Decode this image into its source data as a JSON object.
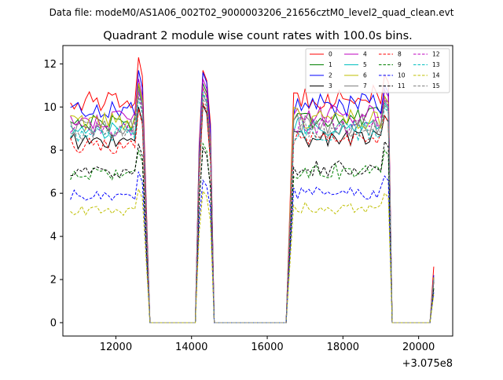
{
  "figure": {
    "suptitle": "Data file: modeM0/AS1A06_002T02_9000003206_21656cztM0_level2_quad_clean.evt",
    "title": "Quadrant 2 module wise count rates with 100.0s bins.",
    "x_offset_label": "+3.075e8"
  },
  "chart_data": {
    "type": "line",
    "title": "Quadrant 2 module wise count rates with 100.0s bins.",
    "xlabel": "",
    "ylabel": "",
    "x_offset": 307500000,
    "xlim": [
      10600,
      20900
    ],
    "ylim": [
      -0.62,
      12.85
    ],
    "xticks": [
      12000,
      14000,
      16000,
      18000,
      20000
    ],
    "xtick_labels": [
      "12000",
      "14000",
      "16000",
      "18000",
      "20000"
    ],
    "yticks": [
      0,
      2,
      4,
      6,
      8,
      10,
      12
    ],
    "ytick_labels": [
      "0",
      "2",
      "4",
      "6",
      "8",
      "10",
      "12"
    ],
    "grid": false,
    "legend_position": "top-right",
    "segments": [
      {
        "x0": 10800,
        "n": 20
      },
      {
        "x0": 14200,
        "n": 4
      },
      {
        "x0": 16700,
        "n": 26
      },
      {
        "x0": 20400,
        "n": 1
      }
    ],
    "zero_segments": [
      [
        12900,
        13000,
        13100,
        13200,
        13300,
        13400,
        13500,
        13600,
        13700,
        13800,
        13900,
        14000,
        14100
      ],
      [
        14600,
        14700,
        14800,
        14900,
        15000,
        15100,
        15200,
        15300,
        15400,
        15500,
        15600,
        15700,
        15800,
        15900,
        16000,
        16100,
        16200,
        16300,
        16400,
        16500
      ],
      [
        19300,
        19400,
        19500,
        19600,
        19700,
        19800,
        19900,
        20000,
        20100,
        20200,
        20300
      ]
    ],
    "series": [
      {
        "name": "0",
        "color": "#ff0000",
        "dash": "solid",
        "mean": 10.25,
        "peak1": 12.3,
        "peak2": 11.7,
        "peak3": 11.5,
        "end": 2.6
      },
      {
        "name": "1",
        "color": "#008000",
        "dash": "solid",
        "mean": 9.3,
        "peak1": 11.0,
        "peak2": 11.1,
        "peak3": 10.5,
        "end": 2.1
      },
      {
        "name": "2",
        "color": "#0000ff",
        "dash": "solid",
        "mean": 9.9,
        "peak1": 11.7,
        "peak2": 11.6,
        "peak3": 11.0,
        "end": 2.2
      },
      {
        "name": "3",
        "color": "#000000",
        "dash": "solid",
        "mean": 8.4,
        "peak1": 10.0,
        "peak2": 10.1,
        "peak3": 9.6,
        "end": 1.9
      },
      {
        "name": "4",
        "color": "#bf00bf",
        "dash": "solid",
        "mean": 9.4,
        "peak1": 11.3,
        "peak2": 11.3,
        "peak3": 10.8,
        "end": 2.1
      },
      {
        "name": "5",
        "color": "#00bfbf",
        "dash": "solid",
        "mean": 8.9,
        "peak1": 10.8,
        "peak2": 10.9,
        "peak3": 10.2,
        "end": 2.0
      },
      {
        "name": "6",
        "color": "#bfbf00",
        "dash": "solid",
        "mean": 9.3,
        "peak1": 11.1,
        "peak2": 10.9,
        "peak3": 10.5,
        "end": 2.1
      },
      {
        "name": "7",
        "color": "#808080",
        "dash": "solid",
        "mean": 9.0,
        "peak1": 10.9,
        "peak2": 10.6,
        "peak3": 10.3,
        "end": 2.0
      },
      {
        "name": "8",
        "color": "#ff0000",
        "dash": "dashed",
        "mean": 8.2,
        "peak1": 9.9,
        "peak2": 10.2,
        "peak3": 9.6,
        "end": 1.9
      },
      {
        "name": "9",
        "color": "#008000",
        "dash": "dashed",
        "mean": 6.9,
        "peak1": 8.0,
        "peak2": 8.3,
        "peak3": 8.0,
        "end": 1.6
      },
      {
        "name": "10",
        "color": "#0000ff",
        "dash": "dashed",
        "mean": 5.9,
        "peak1": 7.0,
        "peak2": 6.6,
        "peak3": 6.8,
        "end": 1.4
      },
      {
        "name": "11",
        "color": "#000000",
        "dash": "dashed",
        "mean": 7.0,
        "peak1": 8.3,
        "peak2": 8.1,
        "peak3": 8.4,
        "end": 1.6
      },
      {
        "name": "12",
        "color": "#bf00bf",
        "dash": "dashed",
        "mean": 9.0,
        "peak1": 10.7,
        "peak2": 10.9,
        "peak3": 10.4,
        "end": 2.0
      },
      {
        "name": "13",
        "color": "#00bfbf",
        "dash": "dashed",
        "mean": 8.7,
        "peak1": 10.4,
        "peak2": 10.7,
        "peak3": 10.0,
        "end": 2.0
      },
      {
        "name": "14",
        "color": "#bfbf00",
        "dash": "dashed",
        "mean": 5.2,
        "peak1": 6.2,
        "peak2": 6.1,
        "peak3": 6.0,
        "end": 1.3
      },
      {
        "name": "15",
        "color": "#808080",
        "dash": "dashed",
        "mean": 8.8,
        "peak1": 10.5,
        "peak2": 10.4,
        "peak3": 10.1,
        "end": 2.0
      }
    ]
  }
}
